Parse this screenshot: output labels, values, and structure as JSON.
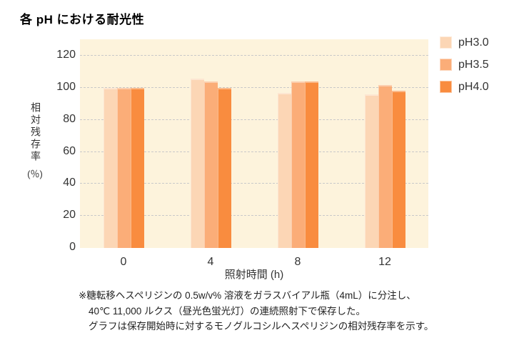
{
  "page": {
    "title": "各 pH における耐光性"
  },
  "chart_data": {
    "type": "bar",
    "title": "各 pH における耐光性",
    "categories": [
      "0",
      "4",
      "8",
      "12"
    ],
    "series": [
      {
        "name": "pH3.0",
        "color": "#FCD6B5",
        "values": [
          100,
          106,
          97,
          96
        ]
      },
      {
        "name": "pH3.5",
        "color": "#FBAD78",
        "values": [
          100,
          104,
          104,
          102
        ]
      },
      {
        "name": "pH4.0",
        "color": "#F98C3F",
        "values": [
          100,
          100,
          104,
          98
        ]
      }
    ],
    "xlabel": "照射時間 (h)",
    "ylabel": "相対残存率",
    "ylabel_unit": "(％)",
    "yticks": [
      0,
      20,
      40,
      60,
      80,
      100,
      120
    ],
    "ylim": [
      0,
      130
    ],
    "grid": "horizontal-dashed",
    "grid_color": "#C9C9C9",
    "plot_bg": "#FDF3DC",
    "legend_position": "right-top"
  },
  "footnote": {
    "line1": "※糖転移ヘスペリジンの 0.5w/v% 溶液をガラスバイアル瓶（4mL）に分注し、",
    "line2": "40℃ 11,000 ルクス（昼光色蛍光灯）の連続照射下で保存した。",
    "line3": "グラフは保存開始時に対するモノグルコシルヘスペリジンの相対残存率を示す。"
  }
}
